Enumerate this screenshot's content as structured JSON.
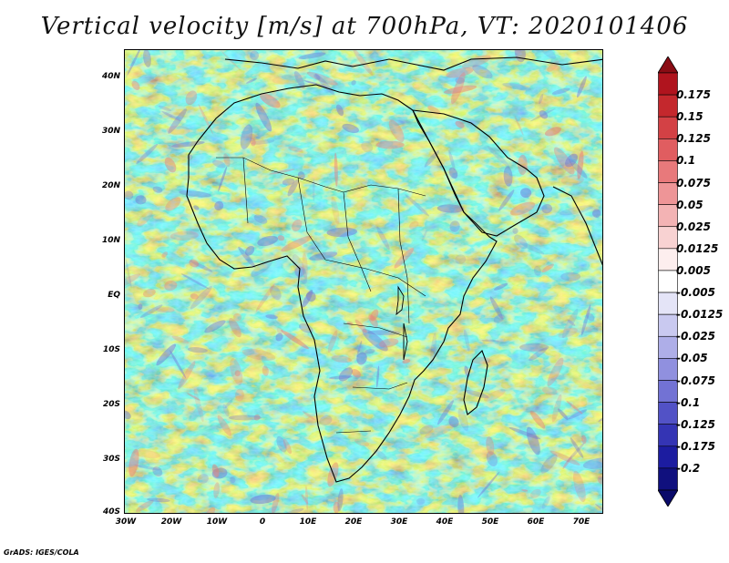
{
  "title": "Vertical velocity [m/s] at 700hPa, VT: 2020101406",
  "credit": "GrADS: IGES/COLA",
  "map": {
    "lat_labels": [
      "40N",
      "30N",
      "20N",
      "10N",
      "EQ",
      "10S",
      "20S",
      "30S",
      "40S"
    ],
    "lon_labels": [
      "30W",
      "20W",
      "10W",
      "0",
      "10E",
      "20E",
      "30E",
      "40E",
      "50E",
      "60E",
      "70E"
    ]
  },
  "colorbar": {
    "labels": [
      "0.175",
      "0.15",
      "0.125",
      "0.1",
      "0.075",
      "0.05",
      "0.025",
      "0.0125",
      "0.005",
      "-0.005",
      "-0.0125",
      "-0.025",
      "-0.05",
      "-0.075",
      "-0.1",
      "-0.125",
      "-0.175",
      "-0.2"
    ],
    "colors": [
      "#b0141e",
      "#c4282d",
      "#d34145",
      "#e05d60",
      "#e8797b",
      "#ee9597",
      "#f3b3b4",
      "#f8d2d2",
      "#fdeeee",
      "#ffffff",
      "#e4e4f7",
      "#c9c9f0",
      "#aeaee8",
      "#9090df",
      "#7272d4",
      "#5252c6",
      "#3434b4",
      "#1c1ca0",
      "#10107e"
    ],
    "top_arrow_color": "#8a0c14",
    "bottom_arrow_color": "#0a0a6a"
  },
  "field": {
    "background_color": "#ecebf8",
    "positive_color": "#e8797b",
    "negative_color": "#7272d4",
    "coastline_color": "#000000"
  }
}
